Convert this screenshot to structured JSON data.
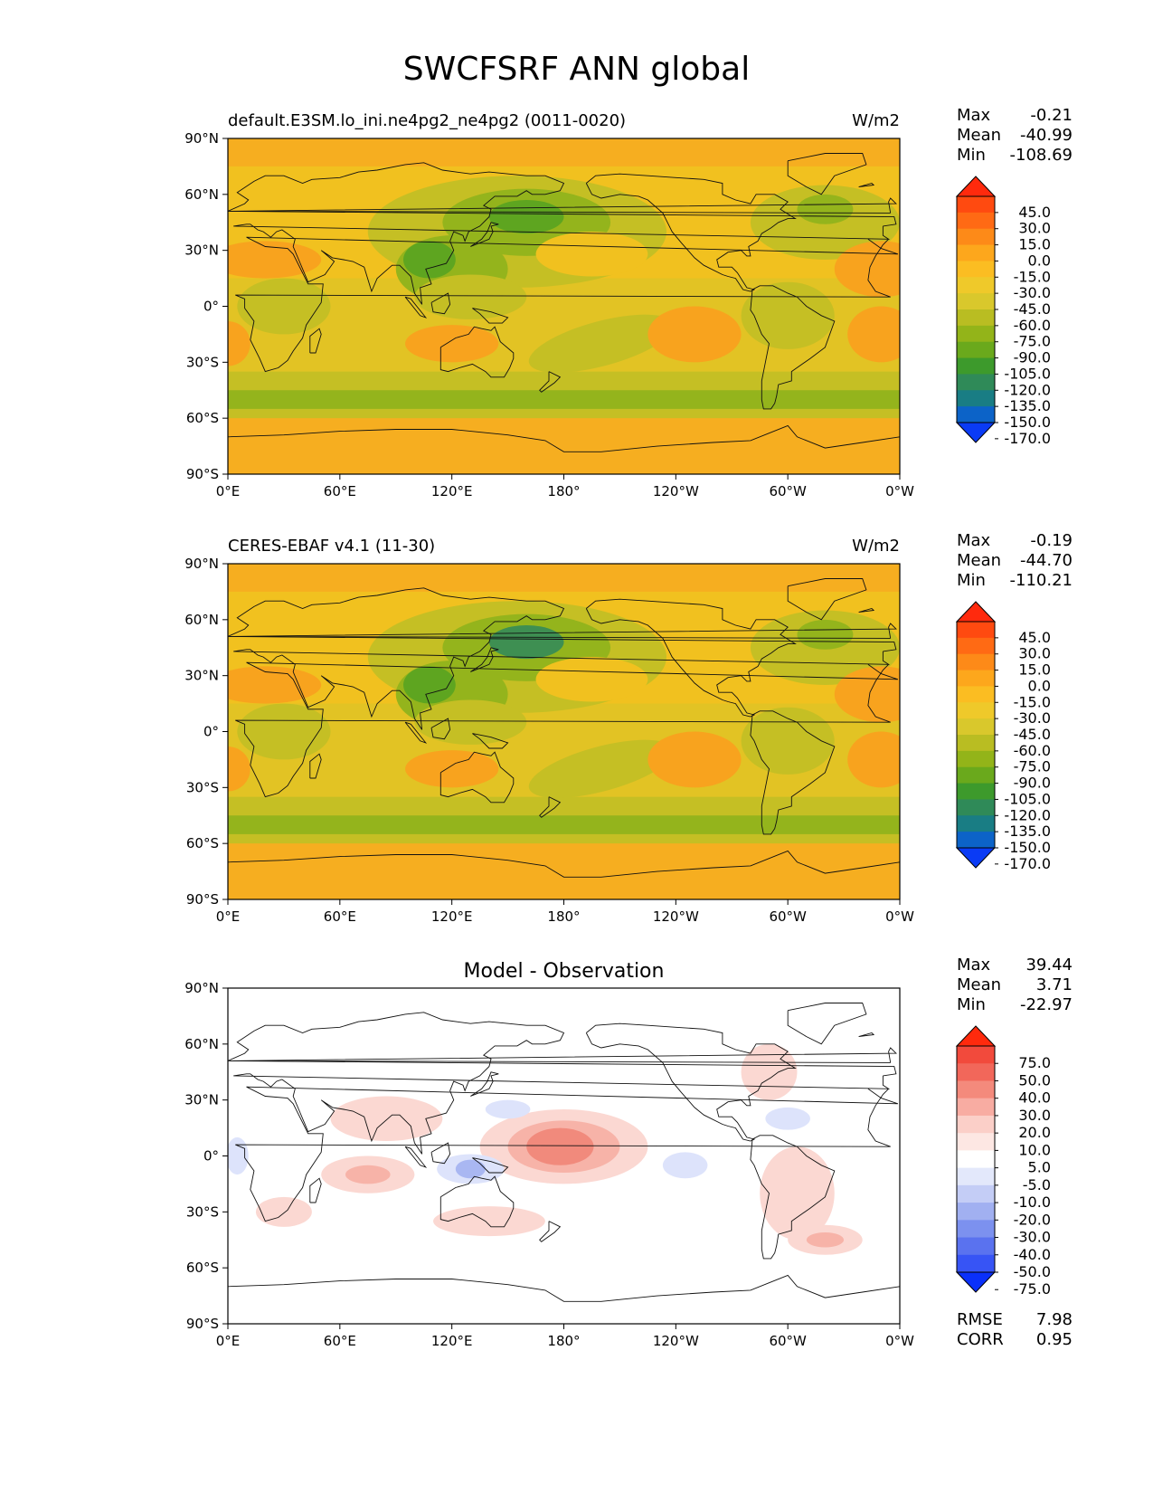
{
  "figure": {
    "title": "SWCFSRF ANN global"
  },
  "lon_ticks": [
    "0°E",
    "60°E",
    "120°E",
    "180°",
    "120°W",
    "60°W",
    "0°W"
  ],
  "lat_ticks": [
    "90°N",
    "60°N",
    "30°N",
    "0°",
    "30°S",
    "60°S",
    "90°S"
  ],
  "panels": [
    {
      "id": "test",
      "title_left": "default.E3SM.lo_ini.ne4pg2_ne4pg2 (0011-0020)",
      "title_center": "",
      "units": "W/m2",
      "stats": [
        {
          "label": "Max",
          "value": "-0.21"
        },
        {
          "label": "Mean",
          "value": "-40.99"
        },
        {
          "label": "Min",
          "value": "-108.69"
        }
      ],
      "colorbar_labels": [
        "45.0",
        "30.0",
        "15.0",
        "0.0",
        "-15.0",
        "-30.0",
        "-45.0",
        "-60.0",
        "-75.0",
        "-90.0",
        "-105.0",
        "-120.0",
        "-135.0",
        "-150.0",
        "-170.0"
      ],
      "colorbar_colors": [
        "#ff2a0d",
        "#ff4a10",
        "#ff6a14",
        "#fd8a18",
        "#fda71c",
        "#fbbd22",
        "#efc92a",
        "#d9c82c",
        "#b9bd22",
        "#93b419",
        "#6aa91c",
        "#3d9a2c",
        "#2f8a58",
        "#197d84",
        "#0c63c8",
        "#0a3bf5"
      ],
      "fill_colors": {
        "background": "#f6ae20",
        "band_mid": "#f1c11f",
        "band_low": "#e2c324",
        "yg": "#c5bf24",
        "green": "#94b41c",
        "dgreen": "#5ea520",
        "teal": "#3e8f52",
        "orange": "#f8a31e"
      }
    },
    {
      "id": "reference",
      "title_left": "CERES-EBAF v4.1 (11-30)",
      "title_center": "",
      "units": "W/m2",
      "stats": [
        {
          "label": "Max",
          "value": "-0.19"
        },
        {
          "label": "Mean",
          "value": "-44.70"
        },
        {
          "label": "Min",
          "value": "-110.21"
        }
      ],
      "colorbar_labels": [
        "45.0",
        "30.0",
        "15.0",
        "0.0",
        "-15.0",
        "-30.0",
        "-45.0",
        "-60.0",
        "-75.0",
        "-90.0",
        "-105.0",
        "-120.0",
        "-135.0",
        "-150.0",
        "-170.0"
      ],
      "colorbar_colors": [
        "#ff2a0d",
        "#ff4a10",
        "#ff6a14",
        "#fd8a18",
        "#fda71c",
        "#fbbd22",
        "#efc92a",
        "#d9c82c",
        "#b9bd22",
        "#93b419",
        "#6aa91c",
        "#3d9a2c",
        "#2f8a58",
        "#197d84",
        "#0c63c8",
        "#0a3bf5"
      ],
      "fill_colors": {
        "background": "#f6ae20",
        "band_mid": "#f1c11f",
        "band_low": "#e2c324",
        "yg": "#c5bf24",
        "green": "#94b41c",
        "dgreen": "#5ea520",
        "teal": "#3e8f52",
        "orange": "#f8a31e"
      }
    },
    {
      "id": "diff",
      "title_left": "",
      "title_center": "Model - Observation",
      "units": "",
      "stats": [
        {
          "label": "Max",
          "value": "39.44"
        },
        {
          "label": "Mean",
          "value": "3.71"
        },
        {
          "label": "Min",
          "value": "-22.97"
        }
      ],
      "extra_stats": [
        {
          "label": "RMSE",
          "value": "7.98"
        },
        {
          "label": "CORR",
          "value": "0.95"
        }
      ],
      "colorbar_labels": [
        "75.0",
        "50.0",
        "40.0",
        "30.0",
        "20.0",
        "10.0",
        "5.0",
        "-5.0",
        "-10.0",
        "-20.0",
        "-30.0",
        "-40.0",
        "-50.0",
        "-75.0"
      ],
      "colorbar_colors": [
        "#ff2a0d",
        "#f24a3c",
        "#f2675a",
        "#f48a7c",
        "#f8aca2",
        "#fbcfc8",
        "#fde7e3",
        "#ffffff",
        "#e3e8fb",
        "#c4cdf6",
        "#a1b0f1",
        "#7c91ef",
        "#5a72ef",
        "#3754f5",
        "#0a30fa"
      ],
      "fill_colors": {
        "background": "#ffffff",
        "pink1": "#fbd8d2",
        "pink2": "#f7b3a8",
        "pink3": "#f18a7c",
        "blue1": "#dde3fb",
        "blue2": "#a9b7f2"
      }
    }
  ]
}
